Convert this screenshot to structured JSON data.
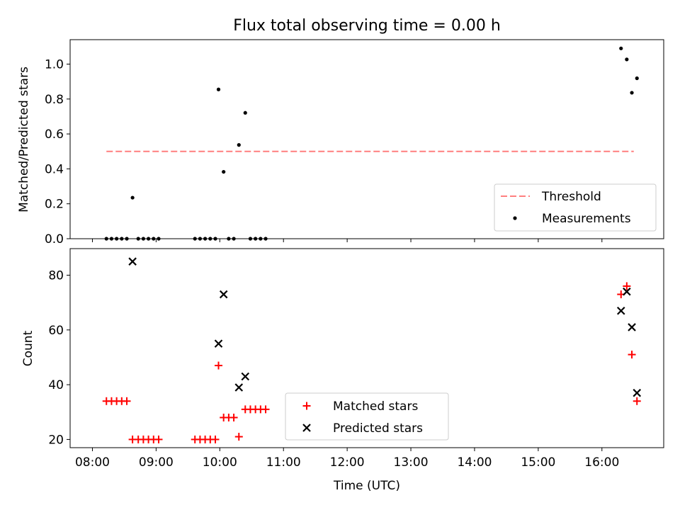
{
  "chart_data": {
    "title": "Flux total observing time = 0.00 h",
    "xlabel": "Time (UTC)",
    "x_unit": "hour of day (UTC)",
    "xlim": [
      7.65,
      16.97
    ],
    "xticks": [
      8,
      9,
      10,
      11,
      12,
      13,
      14,
      15,
      16
    ],
    "xtick_labels": [
      "08:00",
      "09:00",
      "10:00",
      "11:00",
      "12:00",
      "13:00",
      "14:00",
      "15:00",
      "16:00"
    ],
    "panels": [
      {
        "type": "scatter",
        "ylabel": "Matched/Predicted stars",
        "ylim": [
          0,
          1.14
        ],
        "yticks": [
          0.0,
          0.2,
          0.4,
          0.6,
          0.8,
          1.0
        ],
        "ytick_labels": [
          "0.0",
          "0.2",
          "0.4",
          "0.6",
          "0.8",
          "1.0"
        ],
        "legend_position": "lower-right",
        "threshold": {
          "name": "Threshold",
          "value": 0.5,
          "x_range": [
            8.22,
            16.5
          ],
          "color": "#ff7f7f",
          "style": "dashed"
        },
        "series": [
          {
            "name": "Measurements",
            "marker": "dot",
            "color": "#000000",
            "x": [
              8.22,
              8.3,
              8.38,
              8.46,
              8.54,
              8.63,
              8.72,
              8.8,
              8.88,
              8.96,
              9.04,
              9.61,
              9.69,
              9.77,
              9.85,
              9.93,
              9.98,
              10.06,
              10.14,
              10.22,
              10.3,
              10.4,
              10.48,
              10.56,
              10.64,
              10.72,
              16.3,
              16.39,
              16.47,
              16.55
            ],
            "y": [
              0,
              0,
              0,
              0,
              0,
              0.235,
              0,
              0,
              0,
              0,
              0,
              0,
              0,
              0,
              0,
              0,
              0.855,
              0.383,
              0,
              0,
              0.537,
              0.721,
              0,
              0,
              0,
              0,
              1.09,
              1.027,
              0.836,
              0.919
            ]
          }
        ]
      },
      {
        "type": "scatter",
        "ylabel": "Count",
        "ylim": [
          17,
          89.7
        ],
        "yticks": [
          20,
          40,
          60,
          80
        ],
        "ytick_labels": [
          "20",
          "40",
          "60",
          "80"
        ],
        "legend_position": "lower-center",
        "series": [
          {
            "name": "Matched stars",
            "marker": "plus",
            "color": "#ff0000",
            "x": [
              8.22,
              8.3,
              8.38,
              8.46,
              8.54,
              8.63,
              8.72,
              8.8,
              8.88,
              8.96,
              9.04,
              9.61,
              9.69,
              9.77,
              9.85,
              9.93,
              9.98,
              10.06,
              10.14,
              10.22,
              10.3,
              10.4,
              10.48,
              10.56,
              10.64,
              10.72,
              16.3,
              16.39,
              16.47,
              16.55
            ],
            "y": [
              34,
              34,
              34,
              34,
              34,
              20,
              20,
              20,
              20,
              20,
              20,
              20,
              20,
              20,
              20,
              20,
              47,
              28,
              28,
              28,
              21,
              31,
              31,
              31,
              31,
              31,
              73,
              76,
              51,
              34
            ]
          },
          {
            "name": "Predicted stars",
            "marker": "x",
            "color": "#000000",
            "x": [
              8.63,
              9.98,
              10.06,
              10.3,
              10.4,
              16.3,
              16.39,
              16.47,
              16.55
            ],
            "y": [
              85,
              55,
              73,
              39,
              43,
              67,
              74,
              61,
              37
            ]
          }
        ]
      }
    ]
  }
}
